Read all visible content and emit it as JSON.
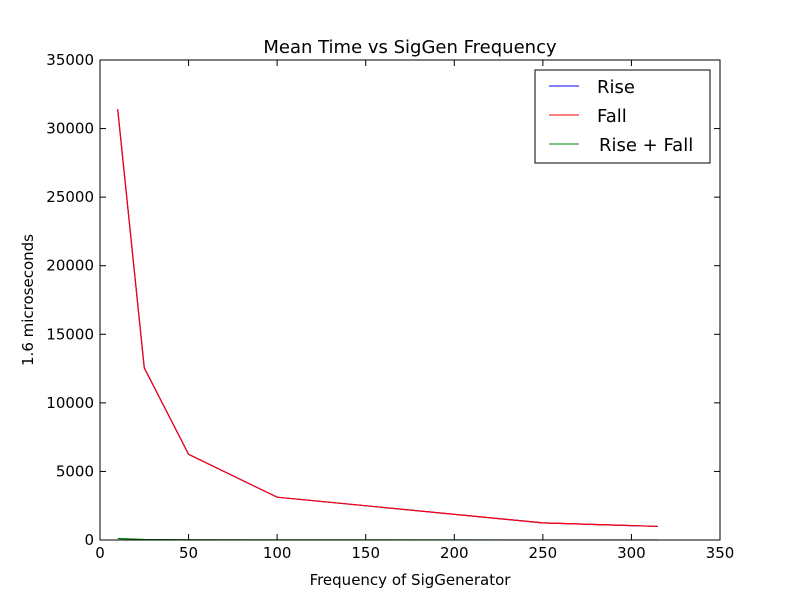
{
  "chart_data": {
    "type": "line",
    "title": "Mean Time vs SigGen Frequency",
    "xlabel": "Frequency of SigGenerator",
    "ylabel": "1.6 microseconds",
    "xlim": [
      0,
      350
    ],
    "ylim": [
      0,
      35000
    ],
    "xticks": [
      0,
      50,
      100,
      150,
      200,
      250,
      300,
      350
    ],
    "yticks": [
      0,
      5000,
      10000,
      15000,
      20000,
      25000,
      30000,
      35000
    ],
    "x": [
      10,
      25,
      50,
      100,
      250,
      315
    ],
    "grid": false,
    "legend_position": "top-right",
    "series": [
      {
        "name": "Rise",
        "color": "#0000ff",
        "values": [
          31400,
          12550,
          6250,
          3120,
          1250,
          990
        ]
      },
      {
        "name": "Fall",
        "color": "#ff0000",
        "values": [
          31400,
          12550,
          6250,
          3120,
          1250,
          990
        ]
      },
      {
        "name": "Rise + Fall",
        "color": "#008000",
        "values": [
          110,
          40,
          20,
          10,
          5,
          3
        ]
      }
    ],
    "draw_order": [
      0,
      2,
      1
    ]
  }
}
